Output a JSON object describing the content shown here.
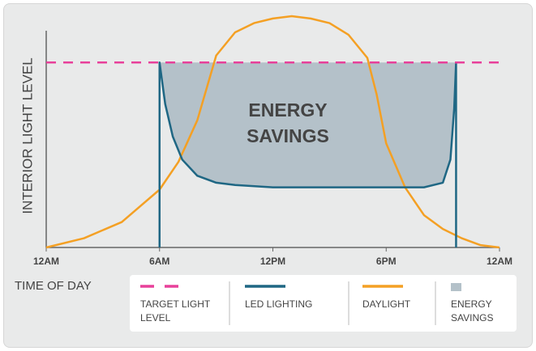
{
  "chart_data": {
    "type": "line",
    "ylabel": "INTERIOR LIGHT LEVEL",
    "xlabel": "TIME OF DAY",
    "annotation": "ENERGY SAVINGS",
    "xlim": [
      0,
      24
    ],
    "ylim": [
      0,
      100
    ],
    "xticks": [
      {
        "value": 0,
        "label": "12AM"
      },
      {
        "value": 6,
        "label": "6AM"
      },
      {
        "value": 12,
        "label": "12PM"
      },
      {
        "value": 18,
        "label": "6PM"
      },
      {
        "value": 24,
        "label": "12AM"
      }
    ],
    "series": [
      {
        "name": "TARGET LIGHT LEVEL",
        "color": "#e8409a",
        "dashed": true,
        "x": [
          0,
          24
        ],
        "values": [
          80,
          80
        ]
      },
      {
        "name": "LED LIGHTING",
        "color": "#1f6784",
        "x": [
          6,
          6,
          6.3,
          6.7,
          7.2,
          8,
          9,
          10,
          12,
          15,
          18,
          20,
          21,
          21.4,
          21.6,
          21.7,
          21.7
        ],
        "values": [
          0,
          80,
          62,
          48,
          38,
          31,
          28,
          27,
          26,
          26,
          26,
          26,
          28,
          38,
          60,
          80,
          0
        ]
      },
      {
        "name": "DAYLIGHT",
        "color": "#f4a024",
        "x": [
          0,
          2,
          4,
          6,
          7,
          8,
          9,
          10,
          11,
          12,
          13,
          14,
          15,
          16,
          17,
          17.5,
          18,
          19,
          20,
          21,
          22,
          23,
          24
        ],
        "values": [
          0,
          4,
          11,
          25,
          37,
          55,
          83,
          93,
          97,
          99,
          100,
          99,
          97,
          92,
          82,
          66,
          45,
          26,
          14,
          8,
          4,
          1,
          0
        ]
      }
    ],
    "area": {
      "name": "ENERGY SAVINGS",
      "color": "#b4c1c9"
    }
  }
}
